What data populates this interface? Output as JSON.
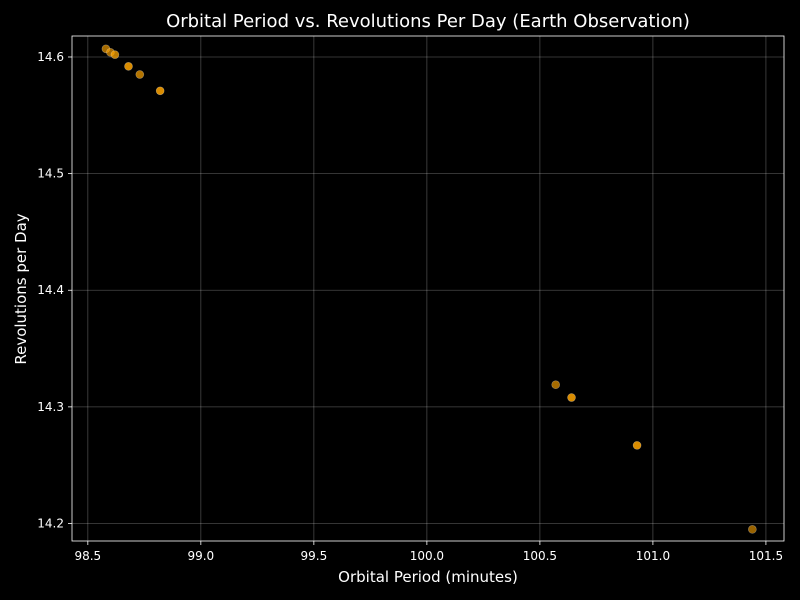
{
  "chart_data": {
    "type": "scatter",
    "title": "Orbital Period vs. Revolutions Per Day (Earth Observation)",
    "xlabel": "Orbital Period (minutes)",
    "ylabel": "Revolutions per Day",
    "xlim": [
      98.43,
      101.58
    ],
    "ylim": [
      14.185,
      14.618
    ],
    "xticks": [
      98.5,
      99.0,
      99.5,
      100.0,
      100.5,
      101.0,
      101.5
    ],
    "xtick_labels": [
      "98.5",
      "99.0",
      "99.5",
      "100.0",
      "100.5",
      "101.0",
      "101.5"
    ],
    "yticks": [
      14.2,
      14.3,
      14.4,
      14.5,
      14.6
    ],
    "ytick_labels": [
      "14.2",
      "14.3",
      "14.4",
      "14.5",
      "14.6"
    ],
    "grid": true,
    "marker_color": "#ffa500",
    "edge_color": "#ffffff",
    "background": "#000000",
    "points": [
      {
        "x": 98.58,
        "y": 14.607
      },
      {
        "x": 98.6,
        "y": 14.604
      },
      {
        "x": 98.62,
        "y": 14.602
      },
      {
        "x": 98.68,
        "y": 14.592
      },
      {
        "x": 98.73,
        "y": 14.585
      },
      {
        "x": 98.82,
        "y": 14.571
      },
      {
        "x": 100.57,
        "y": 14.319
      },
      {
        "x": 100.64,
        "y": 14.308
      },
      {
        "x": 100.93,
        "y": 14.267
      },
      {
        "x": 101.44,
        "y": 14.195
      }
    ],
    "point_alpha": [
      0.65,
      0.65,
      0.75,
      0.85,
      0.7,
      0.85,
      0.65,
      0.85,
      0.85,
      0.6
    ]
  }
}
